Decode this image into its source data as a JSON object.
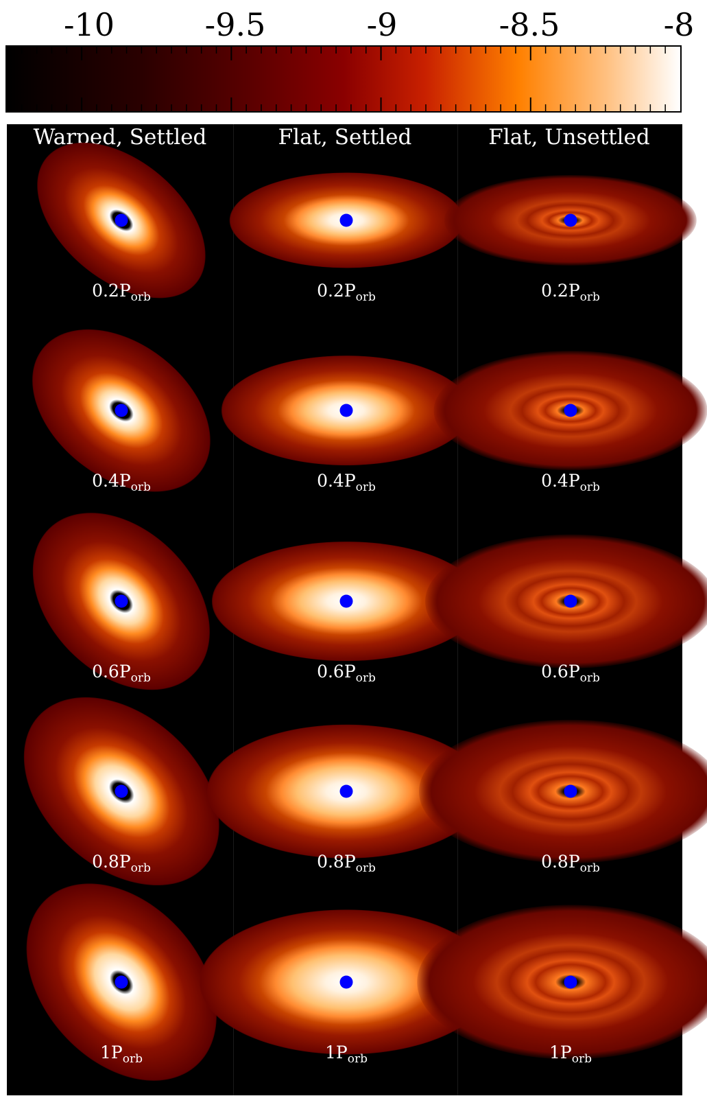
{
  "colorbar": {
    "ticks": [
      "-10",
      "-9.5",
      "-9",
      "-8.5",
      "-8"
    ],
    "min": -10.25,
    "max": -8.0,
    "colors": [
      "#000000",
      "#5a0000",
      "#8a0000",
      "#c82000",
      "#ff8000",
      "#ffffff"
    ]
  },
  "columns": [
    "Warped, Settled",
    "Flat, Settled",
    "Flat, Unsettled"
  ],
  "phases": [
    "0.2",
    "0.4",
    "0.6",
    "0.8",
    "1"
  ],
  "label_unit": "P",
  "label_sub": "orb",
  "star_color": "#0000ff"
}
